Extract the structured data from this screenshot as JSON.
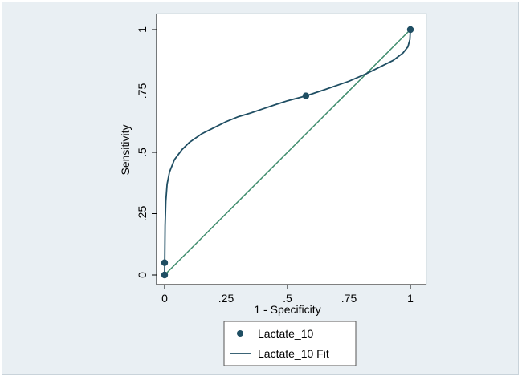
{
  "chart_data": {
    "type": "line",
    "title": "",
    "xlabel": "1 - Specificity",
    "ylabel": "Sensitivity",
    "xlim": [
      0,
      1
    ],
    "ylim": [
      0,
      1
    ],
    "x_ticks": [
      0,
      0.25,
      0.5,
      0.75,
      1
    ],
    "x_tick_labels": [
      "0",
      ".25",
      ".5",
      ".75",
      "1"
    ],
    "y_ticks": [
      0,
      0.25,
      0.5,
      0.75,
      1
    ],
    "y_tick_labels": [
      "0",
      ".25",
      ".5",
      ".75",
      "1"
    ],
    "grid": false,
    "legend_position": "bottom-center",
    "series": [
      {
        "name": "Lactate_10",
        "kind": "scatter",
        "color": "#1f4e63",
        "points": [
          {
            "x": 0,
            "y": 0
          },
          {
            "x": 0,
            "y": 0.05
          },
          {
            "x": 0.575,
            "y": 0.73
          },
          {
            "x": 1,
            "y": 1
          }
        ]
      },
      {
        "name": "Lactate_10 Fit",
        "kind": "line",
        "color": "#1f4e63",
        "points": [
          {
            "x": 0,
            "y": 0
          },
          {
            "x": 0.002,
            "y": 0.2
          },
          {
            "x": 0.005,
            "y": 0.3
          },
          {
            "x": 0.01,
            "y": 0.37
          },
          {
            "x": 0.02,
            "y": 0.42
          },
          {
            "x": 0.04,
            "y": 0.47
          },
          {
            "x": 0.07,
            "y": 0.51
          },
          {
            "x": 0.1,
            "y": 0.54
          },
          {
            "x": 0.15,
            "y": 0.575
          },
          {
            "x": 0.2,
            "y": 0.6
          },
          {
            "x": 0.25,
            "y": 0.625
          },
          {
            "x": 0.3,
            "y": 0.645
          },
          {
            "x": 0.35,
            "y": 0.66
          },
          {
            "x": 0.4,
            "y": 0.677
          },
          {
            "x": 0.45,
            "y": 0.694
          },
          {
            "x": 0.5,
            "y": 0.71
          },
          {
            "x": 0.575,
            "y": 0.73
          },
          {
            "x": 0.65,
            "y": 0.755
          },
          {
            "x": 0.75,
            "y": 0.79
          },
          {
            "x": 0.82,
            "y": 0.82
          },
          {
            "x": 0.88,
            "y": 0.85
          },
          {
            "x": 0.93,
            "y": 0.875
          },
          {
            "x": 0.97,
            "y": 0.905
          },
          {
            "x": 0.99,
            "y": 0.93
          },
          {
            "x": 0.998,
            "y": 0.96
          },
          {
            "x": 1,
            "y": 1
          }
        ]
      },
      {
        "name": "",
        "kind": "reference",
        "color": "#3b8a6a",
        "points": [
          {
            "x": 0,
            "y": 0
          },
          {
            "x": 1,
            "y": 1
          }
        ]
      }
    ]
  }
}
